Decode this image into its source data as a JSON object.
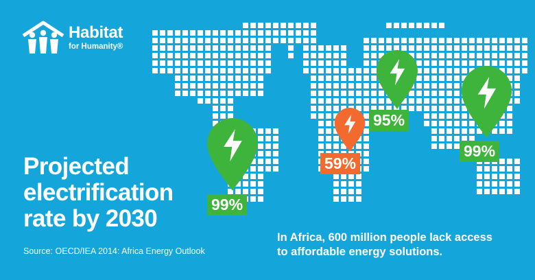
{
  "logo": {
    "name": "Habitat",
    "tagline": "for Humanity®",
    "icon": "people-house-icon"
  },
  "headline": {
    "lines": [
      "Projected",
      "electrification",
      "rate by 2030"
    ]
  },
  "source": "Source: OECD/IEA 2014: Africa Energy Outlook",
  "note": {
    "lines": [
      "In Africa, 600 million people lack access",
      "to affordable energy solutions."
    ]
  },
  "markers": [
    {
      "region": "South America",
      "rate": "99%",
      "color": "#3fb43c",
      "value": 99
    },
    {
      "region": "Africa",
      "rate": "59%",
      "color": "#f26a2e",
      "value": 59
    },
    {
      "region": "Asia",
      "rate": "95%",
      "color": "#3fb43c",
      "value": 95
    },
    {
      "region": "East Asia",
      "rate": "99%",
      "color": "#3fb43c",
      "value": 99
    }
  ],
  "colors": {
    "background": "#14a6da",
    "map_dots": "#ffffff",
    "high_rate": "#3fb43c",
    "low_rate": "#f26a2e"
  },
  "icons": {
    "marker": "lightning-bolt-icon",
    "map": "world-map-dots"
  }
}
